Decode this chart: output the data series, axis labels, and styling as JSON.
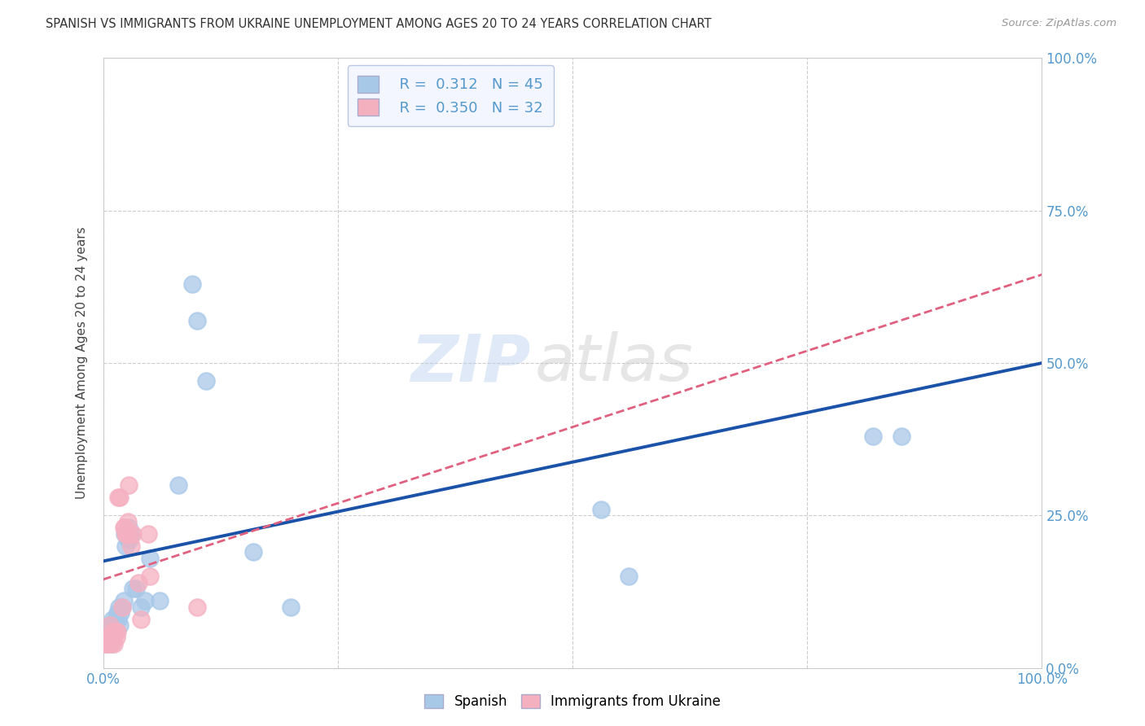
{
  "title": "SPANISH VS IMMIGRANTS FROM UKRAINE UNEMPLOYMENT AMONG AGES 20 TO 24 YEARS CORRELATION CHART",
  "source": "Source: ZipAtlas.com",
  "ylabel": "Unemployment Among Ages 20 to 24 years",
  "xlim": [
    0,
    1
  ],
  "ylim": [
    0,
    1
  ],
  "x_ticks": [
    0.0,
    0.25,
    0.5,
    0.75,
    1.0
  ],
  "x_tick_labels": [
    "0.0%",
    "",
    "",
    "",
    "100.0%"
  ],
  "y_tick_labels_right": [
    "0.0%",
    "25.0%",
    "50.0%",
    "75.0%",
    "100.0%"
  ],
  "spanish_R": "0.312",
  "spanish_N": "45",
  "ukraine_R": "0.350",
  "ukraine_N": "32",
  "spanish_color": "#a8c8e8",
  "ukraine_color": "#f5b0c0",
  "spanish_line_color": "#1a52a8",
  "ukraine_line_color": "#e06080",
  "spanish_line_intercept": 0.175,
  "spanish_line_slope": 0.325,
  "ukraine_line_intercept": 0.145,
  "ukraine_line_slope": 0.5,
  "spanish_points": [
    [
      0.002,
      0.05
    ],
    [
      0.003,
      0.05
    ],
    [
      0.004,
      0.04
    ],
    [
      0.005,
      0.06
    ],
    [
      0.006,
      0.05
    ],
    [
      0.007,
      0.04
    ],
    [
      0.007,
      0.06
    ],
    [
      0.008,
      0.05
    ],
    [
      0.009,
      0.07
    ],
    [
      0.01,
      0.06
    ],
    [
      0.01,
      0.08
    ],
    [
      0.011,
      0.05
    ],
    [
      0.012,
      0.07
    ],
    [
      0.013,
      0.08
    ],
    [
      0.014,
      0.06
    ],
    [
      0.015,
      0.09
    ],
    [
      0.016,
      0.08
    ],
    [
      0.017,
      0.1
    ],
    [
      0.018,
      0.07
    ],
    [
      0.019,
      0.09
    ],
    [
      0.02,
      0.1
    ],
    [
      0.022,
      0.11
    ],
    [
      0.023,
      0.22
    ],
    [
      0.024,
      0.2
    ],
    [
      0.025,
      0.22
    ],
    [
      0.026,
      0.21
    ],
    [
      0.027,
      0.23
    ],
    [
      0.028,
      0.21
    ],
    [
      0.03,
      0.22
    ],
    [
      0.032,
      0.13
    ],
    [
      0.035,
      0.13
    ],
    [
      0.04,
      0.1
    ],
    [
      0.045,
      0.11
    ],
    [
      0.05,
      0.18
    ],
    [
      0.06,
      0.11
    ],
    [
      0.08,
      0.3
    ],
    [
      0.095,
      0.63
    ],
    [
      0.1,
      0.57
    ],
    [
      0.11,
      0.47
    ],
    [
      0.16,
      0.19
    ],
    [
      0.2,
      0.1
    ],
    [
      0.53,
      0.26
    ],
    [
      0.56,
      0.15
    ],
    [
      0.82,
      0.38
    ],
    [
      0.85,
      0.38
    ]
  ],
  "ukraine_points": [
    [
      0.002,
      0.04
    ],
    [
      0.003,
      0.05
    ],
    [
      0.004,
      0.04
    ],
    [
      0.005,
      0.05
    ],
    [
      0.006,
      0.04
    ],
    [
      0.007,
      0.05
    ],
    [
      0.007,
      0.07
    ],
    [
      0.008,
      0.05
    ],
    [
      0.009,
      0.04
    ],
    [
      0.01,
      0.06
    ],
    [
      0.011,
      0.05
    ],
    [
      0.012,
      0.04
    ],
    [
      0.013,
      0.06
    ],
    [
      0.014,
      0.05
    ],
    [
      0.015,
      0.06
    ],
    [
      0.016,
      0.28
    ],
    [
      0.018,
      0.28
    ],
    [
      0.02,
      0.1
    ],
    [
      0.022,
      0.23
    ],
    [
      0.023,
      0.23
    ],
    [
      0.024,
      0.22
    ],
    [
      0.025,
      0.22
    ],
    [
      0.026,
      0.24
    ],
    [
      0.027,
      0.3
    ],
    [
      0.028,
      0.22
    ],
    [
      0.03,
      0.2
    ],
    [
      0.032,
      0.22
    ],
    [
      0.038,
      0.14
    ],
    [
      0.04,
      0.08
    ],
    [
      0.048,
      0.22
    ],
    [
      0.05,
      0.15
    ],
    [
      0.1,
      0.1
    ]
  ],
  "watermark_zip": "ZIP",
  "watermark_atlas": "atlas",
  "background_color": "#ffffff",
  "grid_color": "#cccccc",
  "title_color": "#333333",
  "source_color": "#999999",
  "axis_label_color": "#444444",
  "tick_color": "#5599cc",
  "legend_box_color": "#f0f4ff",
  "legend_edge_color": "#aabbdd"
}
